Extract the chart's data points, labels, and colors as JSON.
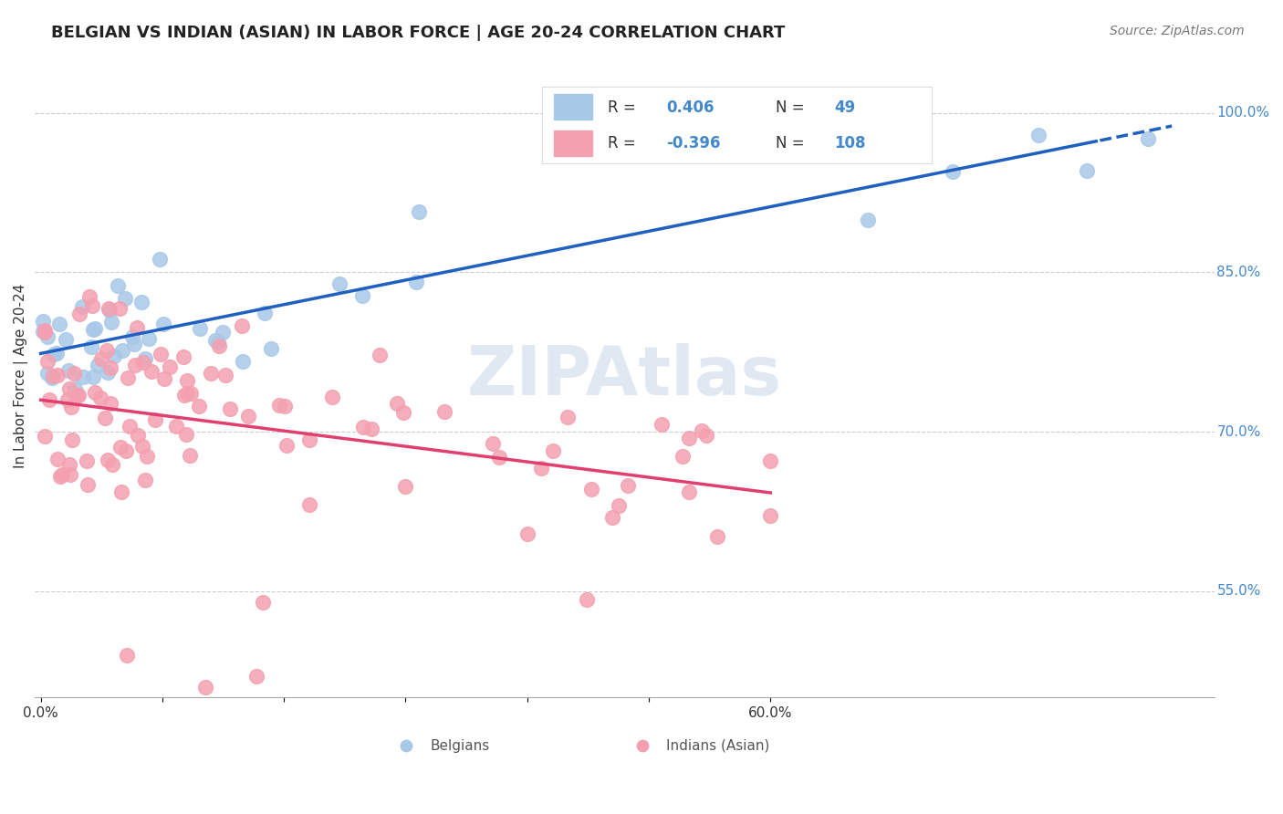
{
  "title": "BELGIAN VS INDIAN (ASIAN) IN LABOR FORCE | AGE 20-24 CORRELATION CHART",
  "source": "Source: ZipAtlas.com",
  "ylabel": "In Labor Force | Age 20-24",
  "belgian_R": 0.406,
  "belgian_N": 49,
  "indian_R": -0.396,
  "indian_N": 108,
  "belgian_color": "#a8c8e8",
  "indian_color": "#f4a0b0",
  "blue_line_color": "#2060c0",
  "pink_line_color": "#e04070",
  "yticks": [
    0.55,
    0.7,
    0.85,
    1.0
  ],
  "ytick_labels": [
    "55.0%",
    "70.0%",
    "85.0%",
    "100.0%"
  ],
  "xticks": [
    0.0,
    0.1,
    0.2,
    0.3,
    0.4,
    0.5,
    0.6
  ],
  "xtick_labels": [
    "0.0%",
    "",
    "",
    "",
    "",
    "",
    "60.0%"
  ]
}
